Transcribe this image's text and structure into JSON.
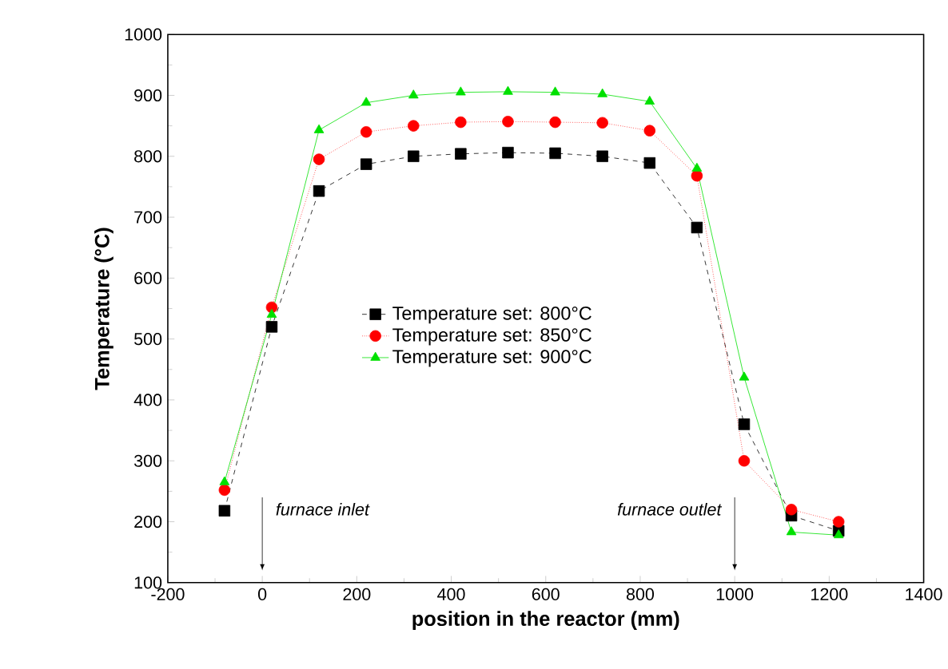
{
  "chart_data": {
    "type": "line",
    "xlabel": "position in the reactor (mm)",
    "ylabel": "Temperature (°C)",
    "x": [
      -80,
      20,
      120,
      220,
      320,
      420,
      520,
      620,
      720,
      820,
      920,
      1020,
      1120,
      1220
    ],
    "series": [
      {
        "name": "Temperature set: 800°C",
        "color": "#000000",
        "marker": "square",
        "line_style": "dashed",
        "values": [
          218,
          520,
          743,
          787,
          800,
          804,
          806,
          805,
          800,
          789,
          683,
          360,
          210,
          185
        ]
      },
      {
        "name": "Temperature set: 850°C",
        "color": "#ff0000",
        "marker": "circle",
        "line_style": "dotted",
        "values": [
          252,
          552,
          795,
          840,
          850,
          856,
          857,
          856,
          855,
          842,
          768,
          300,
          220,
          200
        ]
      },
      {
        "name": "Temperature set: 900°C",
        "color": "#00e000",
        "marker": "triangle",
        "line_style": "solid",
        "values": [
          265,
          540,
          843,
          888,
          900,
          905,
          906,
          905,
          902,
          890,
          780,
          437,
          183,
          178
        ]
      }
    ],
    "xlim": [
      -200,
      1400
    ],
    "ylim": [
      100,
      1000
    ],
    "xticks": [
      -200,
      0,
      200,
      400,
      600,
      800,
      1000,
      1200,
      1400
    ],
    "yticks": [
      100,
      200,
      300,
      400,
      500,
      600,
      700,
      800,
      900,
      1000
    ],
    "legend": "center",
    "grid": false,
    "annotations": [
      {
        "text": "furnace inlet",
        "x": 0,
        "y": 120
      },
      {
        "text": "furnace outlet",
        "x": 1000,
        "y": 120
      }
    ]
  }
}
